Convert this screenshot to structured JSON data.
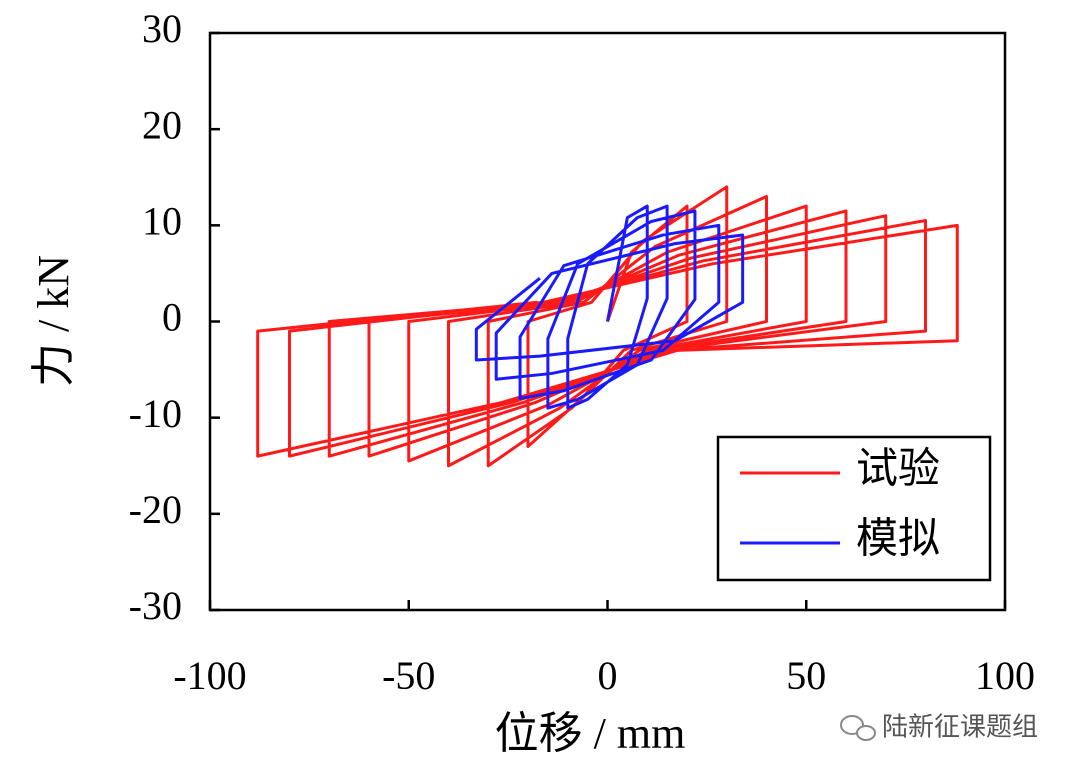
{
  "chart_data": {
    "type": "line",
    "xlabel": "位移 / mm",
    "ylabel": "力 / kN",
    "xlim": [
      -100,
      100
    ],
    "xticks": [
      -100,
      -50,
      0,
      50,
      100
    ],
    "ylim": [
      -30,
      30
    ],
    "yticks": [
      -30,
      -20,
      -10,
      0,
      10,
      20,
      30
    ],
    "legend": "lower right",
    "watermark": "陆新征课题组",
    "series": [
      {
        "name": "试验",
        "color": "#ff1a1a",
        "x": [
          0,
          6,
          20,
          20,
          4,
          -6,
          -20,
          -20,
          -4,
          9,
          30,
          30,
          6,
          -9,
          -30,
          -30,
          -6,
          12,
          40,
          40,
          8,
          -12,
          -40,
          -40,
          -8,
          15,
          50,
          50,
          10,
          -15,
          -50,
          -50,
          -10,
          18,
          60,
          60,
          12,
          -18,
          -60,
          -60,
          -12,
          21,
          70,
          70,
          14,
          -21,
          -70,
          -70,
          -14,
          24,
          80,
          80,
          16,
          -24,
          -80,
          -80,
          -16,
          26.4,
          88,
          88,
          17.6,
          -26.4,
          -88,
          -88,
          -17.6
        ],
        "values": [
          0,
          7.2,
          12,
          0,
          -3,
          -7.8,
          -13,
          0,
          2,
          8.4,
          14,
          0,
          -3,
          -9,
          -15,
          0,
          2,
          7.8,
          13,
          0,
          -3,
          -9,
          -15,
          0,
          2,
          7.2,
          12,
          0,
          -3,
          -8.7,
          -14.5,
          0,
          2,
          6.9,
          11.5,
          0,
          -3,
          -8.4,
          -14,
          0,
          2,
          6.6,
          11,
          0,
          -3,
          -8.4,
          -14,
          0,
          2,
          6.3,
          10.5,
          -1,
          -3,
          -8.4,
          -14,
          -1,
          2,
          6,
          10,
          -2,
          -3,
          -8.4,
          -14,
          -1,
          2
        ]
      },
      {
        "name": "模拟",
        "color": "#1a1aff",
        "x": [
          0,
          5,
          10,
          10,
          5,
          -5,
          -10,
          -10,
          -5,
          7.5,
          15,
          15,
          7.5,
          -7.5,
          -15,
          -15,
          -7.5,
          11,
          22,
          22,
          11,
          -11,
          -22,
          -22,
          -11,
          14,
          28,
          28,
          14,
          -14,
          -28,
          -28,
          -14,
          17,
          34,
          34,
          17,
          -17,
          -33,
          -33,
          -17
        ],
        "values": [
          0,
          10.8,
          12,
          2.4,
          -4.5,
          -8.1,
          -9,
          -1.8,
          6,
          10.8,
          12,
          2.4,
          -4.5,
          -8.1,
          -9,
          -1.8,
          6,
          10.4,
          11.5,
          2.3,
          -4,
          -7.2,
          -8,
          -1.6,
          5.8,
          9,
          10,
          2,
          -3,
          -5.4,
          -6,
          -1.2,
          5,
          8.1,
          9,
          2,
          -2,
          -3.6,
          -4,
          -0.8,
          4.5
        ]
      }
    ]
  }
}
